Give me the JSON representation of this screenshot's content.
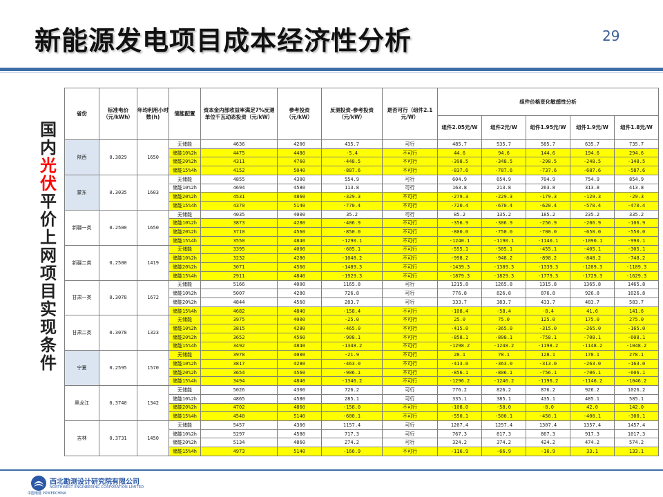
{
  "title": "新能源发电项目成本经济性分析",
  "page_number": "29",
  "side_text": [
    {
      "ch": "国",
      "hl": false
    },
    {
      "ch": "内",
      "hl": false
    },
    {
      "ch": "光",
      "hl": true
    },
    {
      "ch": "伏",
      "hl": true
    },
    {
      "ch": "平",
      "hl": false
    },
    {
      "ch": "价",
      "hl": false
    },
    {
      "ch": "上",
      "hl": false
    },
    {
      "ch": "网",
      "hl": false
    },
    {
      "ch": "项",
      "hl": false
    },
    {
      "ch": "目",
      "hl": false
    },
    {
      "ch": "实",
      "hl": false
    },
    {
      "ch": "现",
      "hl": false
    },
    {
      "ch": "条",
      "hl": false
    },
    {
      "ch": "件",
      "hl": false
    }
  ],
  "table": {
    "headers": {
      "province": "省份",
      "price": "标准电价（元/kWh）",
      "hours": "年均利用小时数(h)",
      "storage": "储能配置",
      "invest_req": "资本金内部收益率满足7%反测单位千瓦动态投资（元/kW）",
      "ref_invest": "参考投资（元/kW）",
      "diff": "反测投资-参考投资（元/kW）",
      "feasible": "是否可行（组件2.1元/W）",
      "sensitivity": "组件价格变化敏感性分析",
      "sens_cols": [
        "组件2.05元/W",
        "组件2元/W",
        "组件1.95元/W",
        "组件1.9元/W",
        "组件1.8元/W"
      ]
    },
    "groups": [
      {
        "province": "陕西",
        "price": "0.3829",
        "hours": "1650",
        "blue": true,
        "rows": [
          {
            "storage": "无储能",
            "inv": "4636",
            "ref": "4200",
            "diff": "435.7",
            "ok": "可行",
            "s": [
              "485.7",
              "535.7",
              "585.7",
              "635.7",
              "735.7"
            ],
            "y": false
          },
          {
            "storage": "储能10%2h",
            "inv": "4475",
            "ref": "4480",
            "diff": "-5.4",
            "ok": "不可行",
            "s": [
              "44.6",
              "94.6",
              "144.6",
              "194.6",
              "294.6"
            ],
            "y": true
          },
          {
            "storage": "储能20%2h",
            "inv": "4311",
            "ref": "4760",
            "diff": "-448.5",
            "ok": "不可行",
            "s": [
              "-398.5",
              "-348.5",
              "-298.5",
              "-248.5",
              "-148.5"
            ],
            "y": true
          },
          {
            "storage": "储能15%4h",
            "inv": "4152",
            "ref": "5040",
            "diff": "-887.6",
            "ok": "不可行",
            "s": [
              "-837.6",
              "-787.6",
              "-737.6",
              "-687.6",
              "-587.6"
            ],
            "y": true
          }
        ]
      },
      {
        "province": "蒙东",
        "price": "0.3035",
        "hours": "1603",
        "blue": true,
        "rows": [
          {
            "storage": "无储能",
            "inv": "4855",
            "ref": "4300",
            "diff": "554.9",
            "ok": "可行",
            "s": [
              "604.9",
              "654.9",
              "704.9",
              "754.9",
              "854.9"
            ],
            "y": false
          },
          {
            "storage": "储能10%2h",
            "inv": "4694",
            "ref": "4580",
            "diff": "113.8",
            "ok": "可行",
            "s": [
              "163.8",
              "213.8",
              "263.8",
              "313.8",
              "413.8"
            ],
            "y": false
          },
          {
            "storage": "储能20%2h",
            "inv": "4531",
            "ref": "4860",
            "diff": "-329.3",
            "ok": "不可行",
            "s": [
              "-279.3",
              "-229.3",
              "-179.3",
              "-129.3",
              "-29.3"
            ],
            "y": true
          },
          {
            "storage": "储能15%4h",
            "inv": "4370",
            "ref": "5140",
            "diff": "-770.4",
            "ok": "不可行",
            "s": [
              "-720.4",
              "-670.4",
              "-620.4",
              "-570.4",
              "-470.4"
            ],
            "y": true
          }
        ]
      },
      {
        "province": "新疆一类",
        "price": "0.2500",
        "hours": "1650",
        "blue": false,
        "rows": [
          {
            "storage": "无储能",
            "inv": "4035",
            "ref": "4000",
            "diff": "35.2",
            "ok": "可行",
            "s": [
              "85.2",
              "135.2",
              "185.2",
              "235.2",
              "335.2"
            ],
            "y": false
          },
          {
            "storage": "储能10%2h",
            "inv": "3873",
            "ref": "4280",
            "diff": "-406.9",
            "ok": "不可行",
            "s": [
              "-356.9",
              "-306.9",
              "-256.9",
              "-206.9",
              "-106.9"
            ],
            "y": true
          },
          {
            "storage": "储能20%2h",
            "inv": "3710",
            "ref": "4560",
            "diff": "-850.0",
            "ok": "不可行",
            "s": [
              "-800.0",
              "-750.0",
              "-700.0",
              "-650.0",
              "-550.0"
            ],
            "y": true
          },
          {
            "storage": "储能15%4h",
            "inv": "3550",
            "ref": "4840",
            "diff": "-1290.1",
            "ok": "不可行",
            "s": [
              "-1240.1",
              "-1190.1",
              "-1140.1",
              "-1090.1",
              "-990.1"
            ],
            "y": true
          }
        ]
      },
      {
        "province": "新疆二类",
        "price": "0.2500",
        "hours": "1419",
        "blue": false,
        "rows": [
          {
            "storage": "无储能",
            "inv": "3395",
            "ref": "4000",
            "diff": "-605.1",
            "ok": "不可行",
            "s": [
              "-555.1",
              "-505.1",
              "-455.1",
              "-405.1",
              "-305.1"
            ],
            "y": true
          },
          {
            "storage": "储能10%2h",
            "inv": "3232",
            "ref": "4280",
            "diff": "-1048.2",
            "ok": "不可行",
            "s": [
              "-998.2",
              "-948.2",
              "-898.2",
              "-848.2",
              "-748.2"
            ],
            "y": true
          },
          {
            "storage": "储能20%2h",
            "inv": "3071",
            "ref": "4560",
            "diff": "-1489.3",
            "ok": "不可行",
            "s": [
              "-1439.3",
              "-1389.3",
              "-1339.3",
              "-1289.3",
              "-1189.3"
            ],
            "y": true
          },
          {
            "storage": "储能15%4h",
            "inv": "2911",
            "ref": "4840",
            "diff": "-1929.3",
            "ok": "不可行",
            "s": [
              "-1879.3",
              "-1829.3",
              "-1779.3",
              "-1729.3",
              "-1629.3"
            ],
            "y": true
          }
        ]
      },
      {
        "province": "甘肃一类",
        "price": "0.3078",
        "hours": "1672",
        "blue": false,
        "rows": [
          {
            "storage": "无储能",
            "inv": "5166",
            "ref": "4000",
            "diff": "1165.8",
            "ok": "可行",
            "s": [
              "1215.8",
              "1265.8",
              "1315.8",
              "1365.8",
              "1465.8"
            ],
            "y": false
          },
          {
            "storage": "储能10%2h",
            "inv": "5007",
            "ref": "4280",
            "diff": "726.8",
            "ok": "可行",
            "s": [
              "776.8",
              "826.8",
              "876.8",
              "926.8",
              "1026.8"
            ],
            "y": false
          },
          {
            "storage": "储能20%2h",
            "inv": "4844",
            "ref": "4560",
            "diff": "283.7",
            "ok": "可行",
            "s": [
              "333.7",
              "383.7",
              "433.7",
              "483.7",
              "583.7"
            ],
            "y": false
          },
          {
            "storage": "储能15%4h",
            "inv": "4682",
            "ref": "4840",
            "diff": "-158.4",
            "ok": "不可行",
            "s": [
              "-108.4",
              "-58.4",
              "-8.4",
              "41.6",
              "141.6"
            ],
            "y": true
          }
        ]
      },
      {
        "province": "甘肃二类",
        "price": "0.3078",
        "hours": "1323",
        "blue": false,
        "rows": [
          {
            "storage": "无储能",
            "inv": "3975",
            "ref": "4000",
            "diff": "-25.0",
            "ok": "不可行",
            "s": [
              "25.0",
              "75.0",
              "125.0",
              "175.0",
              "275.0"
            ],
            "y": true
          },
          {
            "storage": "储能10%2h",
            "inv": "3815",
            "ref": "4280",
            "diff": "-465.0",
            "ok": "不可行",
            "s": [
              "-415.0",
              "-365.0",
              "-315.0",
              "-265.0",
              "-165.0"
            ],
            "y": true
          },
          {
            "storage": "储能20%2h",
            "inv": "3652",
            "ref": "4560",
            "diff": "-908.1",
            "ok": "不可行",
            "s": [
              "-858.1",
              "-808.1",
              "-758.1",
              "-708.1",
              "-608.1"
            ],
            "y": true
          },
          {
            "storage": "储能15%4h",
            "inv": "3492",
            "ref": "4840",
            "diff": "-1348.2",
            "ok": "不可行",
            "s": [
              "-1298.2",
              "-1248.2",
              "-1198.2",
              "-1148.2",
              "-1048.2"
            ],
            "y": true
          }
        ]
      },
      {
        "province": "宁夏",
        "price": "0.2595",
        "hours": "1570",
        "blue": true,
        "rows": [
          {
            "storage": "无储能",
            "inv": "3978",
            "ref": "4000",
            "diff": "-21.9",
            "ok": "不可行",
            "s": [
              "28.1",
              "78.1",
              "128.1",
              "178.1",
              "278.1"
            ],
            "y": true
          },
          {
            "storage": "储能10%2h",
            "inv": "3817",
            "ref": "4280",
            "diff": "-463.0",
            "ok": "不可行",
            "s": [
              "-413.0",
              "-363.0",
              "-313.0",
              "-263.0",
              "-163.0"
            ],
            "y": true
          },
          {
            "storage": "储能20%2h",
            "inv": "3654",
            "ref": "4560",
            "diff": "-906.1",
            "ok": "不可行",
            "s": [
              "-856.1",
              "-806.1",
              "-756.1",
              "-706.1",
              "-606.1"
            ],
            "y": true
          },
          {
            "storage": "储能15%4h",
            "inv": "3494",
            "ref": "4840",
            "diff": "-1346.2",
            "ok": "不可行",
            "s": [
              "-1296.2",
              "-1246.2",
              "-1196.2",
              "-1146.2",
              "-1046.2"
            ],
            "y": true
          }
        ]
      },
      {
        "province": "黑龙江",
        "price": "0.3740",
        "hours": "1342",
        "blue": false,
        "rows": [
          {
            "storage": "无储能",
            "inv": "5026",
            "ref": "4300",
            "diff": "726.2",
            "ok": "可行",
            "s": [
              "776.2",
              "826.2",
              "876.2",
              "926.2",
              "1026.2"
            ],
            "y": false
          },
          {
            "storage": "储能10%2h",
            "inv": "4865",
            "ref": "4580",
            "diff": "285.1",
            "ok": "可行",
            "s": [
              "335.1",
              "385.1",
              "435.1",
              "485.1",
              "585.1"
            ],
            "y": false
          },
          {
            "storage": "储能20%2h",
            "inv": "4702",
            "ref": "4860",
            "diff": "-158.0",
            "ok": "不可行",
            "s": [
              "-108.0",
              "-58.0",
              "-8.0",
              "42.0",
              "142.0"
            ],
            "y": true
          },
          {
            "storage": "储能15%4h",
            "inv": "4540",
            "ref": "5140",
            "diff": "-600.1",
            "ok": "不可行",
            "s": [
              "-550.1",
              "-500.1",
              "-450.1",
              "-400.1",
              "-300.1"
            ],
            "y": true
          }
        ]
      },
      {
        "province": "吉林",
        "price": "0.3731",
        "hours": "1450",
        "blue": false,
        "rows": [
          {
            "storage": "无储能",
            "inv": "5457",
            "ref": "4300",
            "diff": "1157.4",
            "ok": "可行",
            "s": [
              "1207.4",
              "1257.4",
              "1307.4",
              "1357.4",
              "1457.4"
            ],
            "y": false
          },
          {
            "storage": "储能10%2h",
            "inv": "5297",
            "ref": "4580",
            "diff": "717.3",
            "ok": "可行",
            "s": [
              "767.3",
              "817.3",
              "867.3",
              "917.3",
              "1017.3"
            ],
            "y": false
          },
          {
            "storage": "储能20%2h",
            "inv": "5134",
            "ref": "4860",
            "diff": "274.2",
            "ok": "可行",
            "s": [
              "324.2",
              "374.2",
              "424.2",
              "474.2",
              "574.2"
            ],
            "y": false
          },
          {
            "storage": "储能15%4h",
            "inv": "4973",
            "ref": "5140",
            "diff": "-166.9",
            "ok": "不可行",
            "s": [
              "-116.9",
              "-66.9",
              "-16.9",
              "33.1",
              "133.1"
            ],
            "y": true
          }
        ]
      }
    ]
  },
  "footer": {
    "company_cn": "西北勘测设计研究院有限公司",
    "company_en": "NORTHWEST ENGINEERING CORPORATION LIMITED",
    "brand_small": "中国电建  POWERCHINA",
    "brand_color": "#2b58a6"
  }
}
